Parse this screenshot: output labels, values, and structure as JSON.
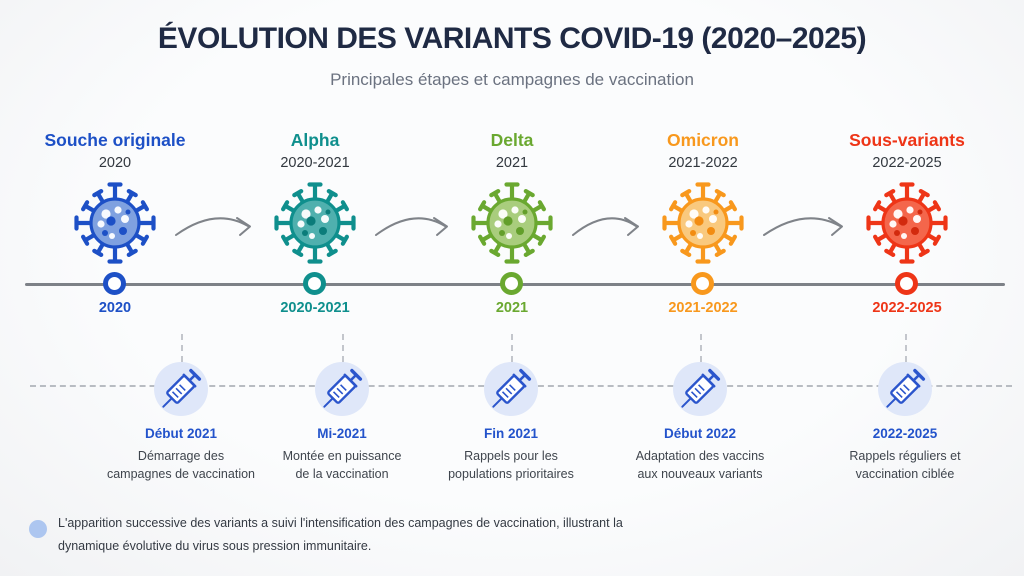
{
  "header": {
    "title": "ÉVOLUTION DES VARIANTS COVID-19 (2020–2025)",
    "subtitle": "Principales étapes et campagnes de vaccination"
  },
  "variants": [
    {
      "name": "Souche originale",
      "period": "2020",
      "timeline_label": "2020",
      "color": "#1d50c6",
      "body_color": "#7fa1e0",
      "dot_color": "#1d50c6"
    },
    {
      "name": "Alpha",
      "period": "2020-2021",
      "timeline_label": "2020-2021",
      "color": "#0f8f8d",
      "body_color": "#4fb0ae",
      "dot_color": "#0b7c7a"
    },
    {
      "name": "Delta",
      "period": "2021",
      "timeline_label": "2021",
      "color": "#6aa830",
      "body_color": "#a9cd7d",
      "dot_color": "#639f2b"
    },
    {
      "name": "Omicron",
      "period": "2021-2022",
      "timeline_label": "2021-2022",
      "color": "#f8981d",
      "body_color": "#f9c97e",
      "dot_color": "#f28c12"
    },
    {
      "name": "Sous-variants",
      "period": "2022-2025",
      "timeline_label": "2022-2025",
      "color": "#ee3517",
      "body_color": "#f4664b",
      "dot_color": "#d22a0e"
    }
  ],
  "milestones": [
    {
      "date_label": "Début 2021",
      "description_line1": "Démarrage des",
      "description_line2": "campagnes de vaccination"
    },
    {
      "date_label": "Mi-2021",
      "description_line1": "Montée en puissance",
      "description_line2": "de la vaccination"
    },
    {
      "date_label": "Fin 2021",
      "description_line1": "Rappels pour les",
      "description_line2": "populations prioritaires"
    },
    {
      "date_label": "Début 2022",
      "description_line1": "Adaptation des vaccins",
      "description_line2": "aux nouveaux variants"
    },
    {
      "date_label": "2022-2025",
      "description_line1": "Rappels réguliers et",
      "description_line2": "vaccination ciblée"
    }
  ],
  "footer": {
    "note": "L'apparition successive des variants a suivi l'intensification des campagnes de vaccination, illustrant la dynamique évolutive du virus sous pression immunitaire."
  },
  "icons": {
    "virus": "virus-icon",
    "syringe": "syringe-icon",
    "mutation_arrow": "curved-arrow-icon",
    "timeline_marker": "ring-marker",
    "footer_bullet": "dot-bullet"
  },
  "colors": {
    "title": "#1f2a44",
    "subtitle": "#6b7280",
    "milestone_accent": "#2353cb",
    "syringe_blue": "#2b55cc",
    "syringe_bg": "#dfe7f9",
    "timeline_line": "#7d8187",
    "dashed_line": "#b8bcc2",
    "arrow": "#7f8389",
    "footer_bullet": "#adc6f0"
  }
}
